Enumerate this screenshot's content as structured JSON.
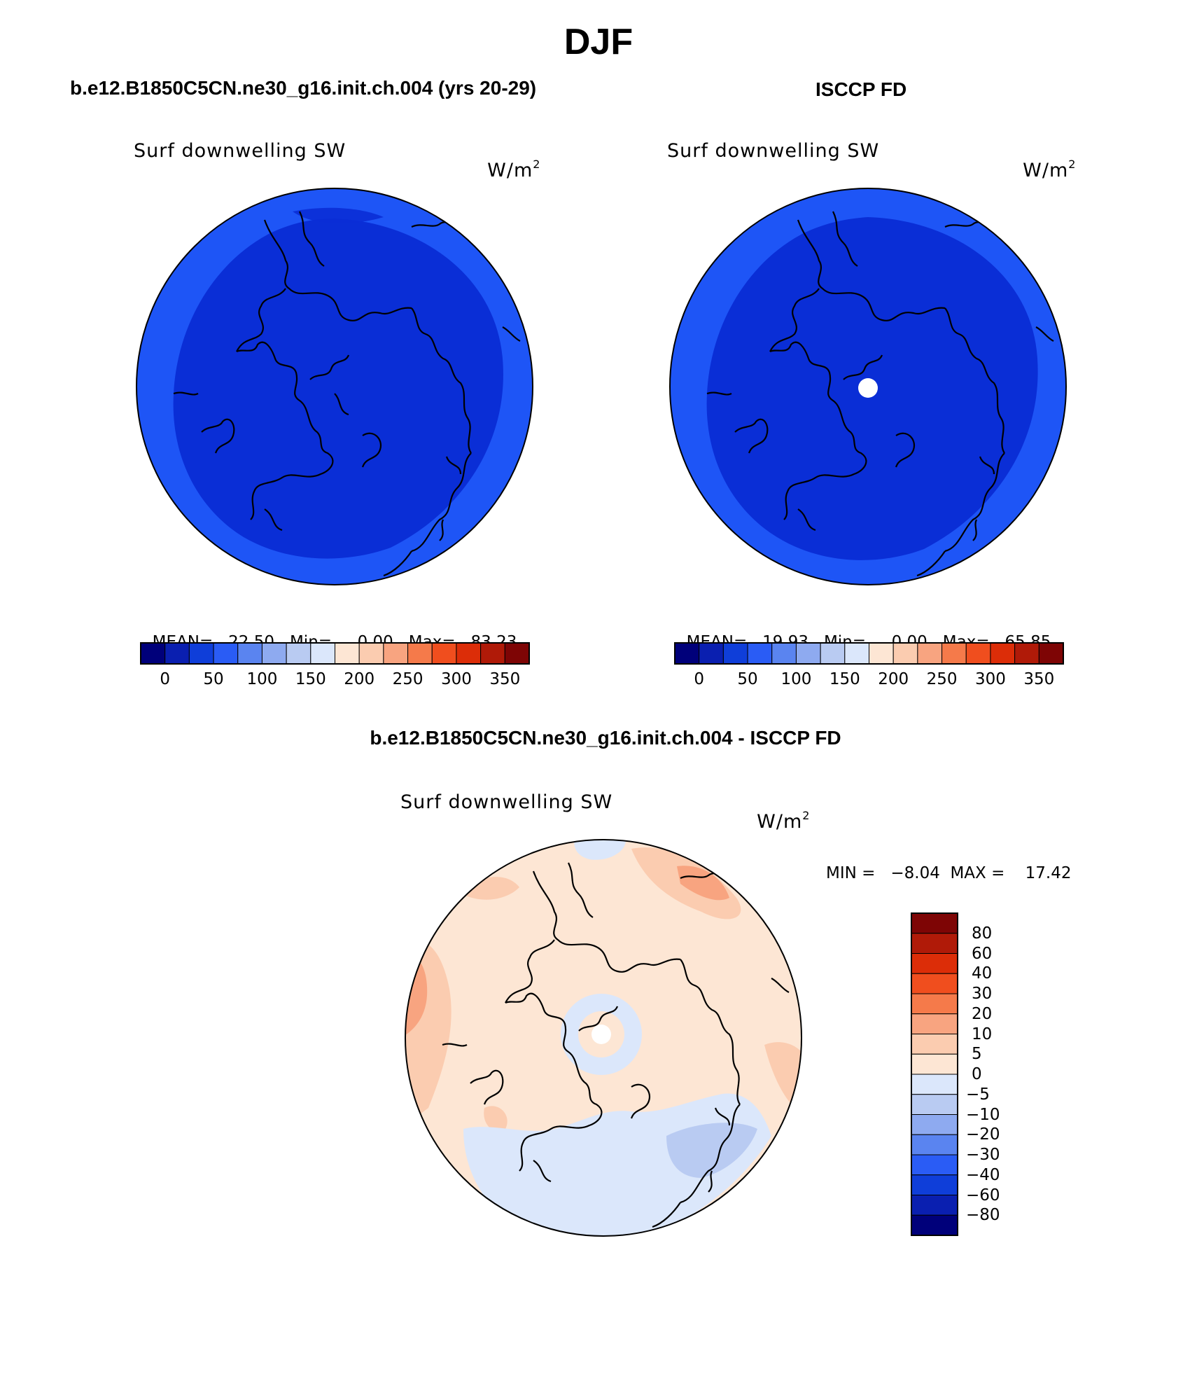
{
  "figure": {
    "title": "DJF",
    "panel_left": {
      "case": "b.e12.B1850C5CN.ne30_g16.init.ch.004 (yrs 20-29)",
      "variable": "Surf downwelling SW",
      "units": "W/m",
      "units_sup": "2",
      "stats": {
        "mean_label": "MEAN=",
        "mean": "22.50",
        "min_label": "Min=",
        "min": "0.00",
        "max_label": "Max=",
        "max": "83.23"
      }
    },
    "panel_right": {
      "case": "ISCCP FD",
      "variable": "Surf downwelling SW",
      "units": "W/m",
      "units_sup": "2",
      "stats": {
        "mean_label": "MEAN=",
        "mean": "19.93",
        "min_label": "Min=",
        "min": "0.00",
        "max_label": "Max=",
        "max": "65.85"
      }
    },
    "panel_diff": {
      "case": "b.e12.B1850C5CN.ne30_g16.init.ch.004 - ISCCP FD",
      "variable": "Surf downwelling SW",
      "units": "W/m",
      "units_sup": "2",
      "stats": "MIN =   −8.04  MAX =    17.42"
    }
  },
  "colorbars": {
    "absolute": {
      "labels": [
        "0",
        "50",
        "100",
        "150",
        "200",
        "250",
        "300",
        "350"
      ],
      "colors": [
        "#00007a",
        "#0a1fb0",
        "#0f3ed9",
        "#2a5cf5",
        "#5a84f0",
        "#8eaaf0",
        "#b9cbf2",
        "#dbe7fb",
        "#fde6d4",
        "#fbccb0",
        "#f8a480",
        "#f57a4a",
        "#f04e1e",
        "#dc2d08",
        "#b01a08",
        "#7e0505"
      ]
    },
    "difference": {
      "labels": [
        "80",
        "60",
        "40",
        "30",
        "20",
        "10",
        "5",
        "0",
        "−5",
        "−10",
        "−20",
        "−30",
        "−40",
        "−60",
        "−80"
      ],
      "colors": [
        "#7e0505",
        "#b01a08",
        "#dc2d08",
        "#f04e1e",
        "#f57a4a",
        "#f8a480",
        "#fbccb0",
        "#fde6d4",
        "#dbe7fb",
        "#b9cbf2",
        "#8eaaf0",
        "#5a84f0",
        "#2a5cf5",
        "#0f3ed9",
        "#0a1fb0",
        "#00007a"
      ]
    }
  },
  "map_colors": {
    "outer_band": "#1e55f6",
    "inner_field": "#0a2ed6",
    "diff_base": "#fde6d4",
    "diff_pos_mid": "#fbccb0",
    "diff_pos_high": "#f8a480",
    "diff_neg": "#dbe7fb",
    "diff_neg_mid": "#b9cbf2",
    "missing": "#ffffff"
  }
}
